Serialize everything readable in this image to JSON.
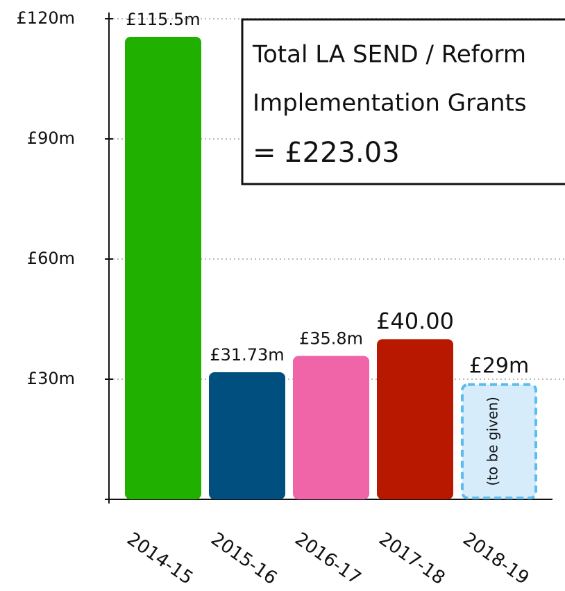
{
  "chart_data": {
    "type": "bar",
    "categories": [
      "2014-15",
      "2015-16",
      "2016-17",
      "2017-18",
      "2018-19"
    ],
    "values": [
      115.5,
      31.73,
      35.8,
      40.0,
      29
    ],
    "value_labels": [
      "£115.5m",
      "£31.73m",
      "£35.8m",
      "£40.00",
      "£29m"
    ],
    "colors": [
      "#1fb000",
      "#004f7f",
      "#f064a8",
      "#b81800",
      "#d6ecfa"
    ],
    "bar_styles": [
      "solid",
      "solid",
      "solid",
      "solid",
      "dashed"
    ],
    "dashed_stroke": "#5bbcf0",
    "ylim": [
      0,
      120
    ],
    "yticks": [
      {
        "value": 30,
        "label": "£30m"
      },
      {
        "value": 60,
        "label": "£60m"
      },
      {
        "value": 90,
        "label": "£90m"
      },
      {
        "value": 120,
        "label": "£120m"
      }
    ],
    "grid": true,
    "bar_note": "(to be given)",
    "annotation": [
      "Total LA SEND / Reform",
      "Implementation Grants",
      "= £223.03"
    ]
  }
}
